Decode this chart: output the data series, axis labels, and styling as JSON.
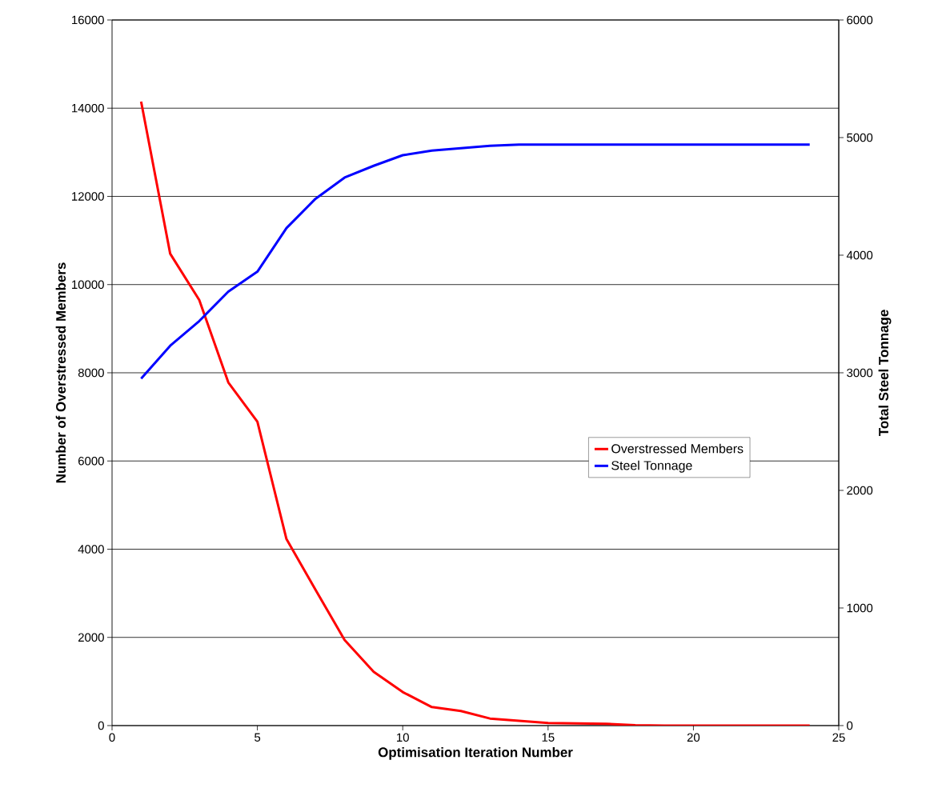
{
  "chart_data": {
    "type": "line",
    "xlabel": "Optimisation Iteration Number",
    "ylabel": "Number of Overstressed Members",
    "y2label": "Total Steel Tonnage",
    "x": [
      1,
      2,
      3,
      4,
      5,
      6,
      7,
      8,
      9,
      10,
      11,
      12,
      13,
      14,
      15,
      16,
      17,
      18,
      19,
      20,
      21,
      22,
      23,
      24
    ],
    "series": [
      {
        "name": "Overstressed Members",
        "color": "#ff0000",
        "axis": "y",
        "values": [
          14150,
          10700,
          9650,
          7780,
          6890,
          4230,
          3080,
          1940,
          1220,
          760,
          420,
          330,
          160,
          110,
          60,
          50,
          40,
          10,
          0,
          0,
          0,
          0,
          0,
          0
        ]
      },
      {
        "name": "Steel Tonnage",
        "color": "#0000ff",
        "axis": "y2",
        "values": [
          2950,
          3230,
          3440,
          3690,
          3860,
          4230,
          4480,
          4660,
          4760,
          4850,
          4890,
          4910,
          4930,
          4940,
          4940,
          4940,
          4940,
          4940,
          4940,
          4940,
          4940,
          4940,
          4940,
          4940
        ]
      }
    ],
    "xlim": [
      0,
      25
    ],
    "xticks": [
      0,
      5,
      10,
      15,
      20,
      25
    ],
    "ylim": [
      0,
      16000
    ],
    "yticks": [
      0,
      2000,
      4000,
      6000,
      8000,
      10000,
      12000,
      14000,
      16000
    ],
    "y2lim": [
      0,
      6000
    ],
    "y2ticks": [
      0,
      1000,
      2000,
      3000,
      4000,
      5000,
      6000
    ],
    "grid": "y",
    "legend": "right",
    "marker": "none",
    "line_style": "solid"
  }
}
